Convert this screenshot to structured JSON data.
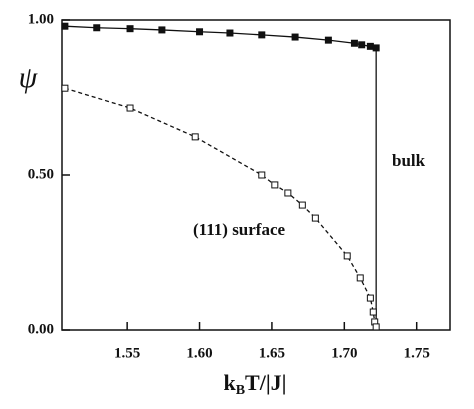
{
  "chart_data": {
    "type": "line",
    "y_label": "ψ",
    "x_label": {
      "main": "k",
      "sub": "B",
      "rest": "T/|J|"
    },
    "annotations": [
      "bulk",
      "(111) surface"
    ],
    "xlim": [
      1.505,
      1.773
    ],
    "ylim": [
      0,
      1
    ],
    "xticks": [
      1.55,
      {
        "value": 1.6,
        "label": "1.60"
      },
      1.65,
      {
        "value": 1.7,
        "label": "1.70"
      },
      1.75
    ],
    "yticks": [
      {
        "value": 0,
        "label": "0.00"
      },
      {
        "value": 0.5,
        "label": "0.50"
      },
      {
        "value": 1,
        "label": "1.00"
      }
    ],
    "series": [
      {
        "name": "bulk",
        "color": "#111111",
        "dash": false,
        "marker": "filled-square",
        "x": [
          1.507,
          1.529,
          1.552,
          1.574,
          1.6,
          1.621,
          1.643,
          1.666,
          1.689,
          1.707,
          1.712,
          1.718,
          1.722
        ],
        "values": [
          0.98,
          0.975,
          0.972,
          0.968,
          0.962,
          0.958,
          0.952,
          0.945,
          0.935,
          0.925,
          0.92,
          0.915,
          0.91
        ]
      },
      {
        "name": "(111) surface",
        "color": "#111111",
        "dash": true,
        "marker": "open-square",
        "x": [
          1.507,
          1.552,
          1.597,
          1.643,
          1.652,
          1.661,
          1.671,
          1.68,
          1.702,
          1.711,
          1.718,
          1.72,
          1.721,
          1.722
        ],
        "values": [
          0.78,
          0.716,
          0.623,
          0.5,
          0.468,
          0.442,
          0.403,
          0.361,
          0.239,
          0.168,
          0.103,
          0.058,
          0.026,
          0.01
        ]
      }
    ]
  }
}
